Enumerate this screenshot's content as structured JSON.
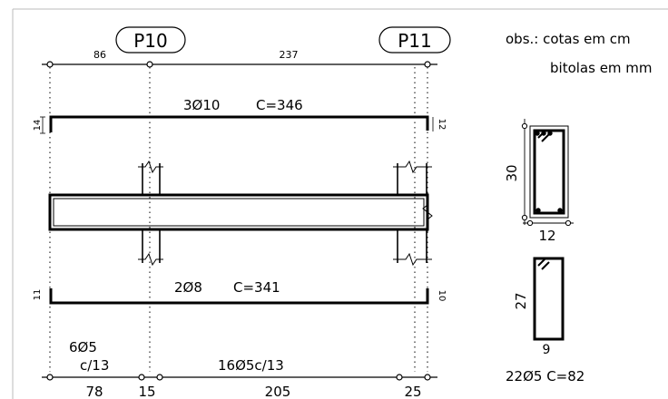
{
  "pillars": {
    "left": "P10",
    "right": "P11"
  },
  "top_dims": {
    "left_span": "86",
    "right_span": "237"
  },
  "notes": {
    "line1": "obs.: cotas em cm",
    "line2": "bitolas em mm"
  },
  "top_bar": {
    "spec": "3Ø10",
    "length": "C=346",
    "hook_left": "14",
    "hook_right": "12"
  },
  "bottom_bar": {
    "spec": "2Ø8",
    "length": "C=341",
    "hook_left": "11",
    "hook_right": "10"
  },
  "stirrups": {
    "left_group_count": "6Ø5",
    "left_group_spacing": "c/13",
    "middle_group": "16Ø5c/13"
  },
  "bottom_dims": {
    "d1": "78",
    "d2": "15",
    "d3": "205",
    "d4": "25"
  },
  "section": {
    "height": "30",
    "width": "12"
  },
  "stirrup_detail": {
    "height": "27",
    "width": "9",
    "spec": "22Ø5 C=82"
  }
}
